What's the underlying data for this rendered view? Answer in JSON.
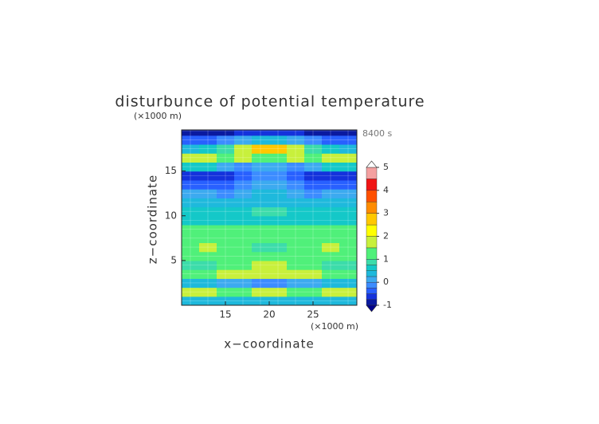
{
  "chart_data": {
    "type": "contour",
    "title": "disturbunce of potential temperature",
    "time_label": "8400 s",
    "xlabel": "x−coordinate",
    "ylabel": "z−coordinate",
    "x_unit": "(×1000 m)",
    "y_unit": "(×1000 m)",
    "xlim": [
      10,
      30
    ],
    "ylim": [
      0,
      19.6
    ],
    "xticks": [
      15,
      20,
      25
    ],
    "yticks": [
      5,
      10,
      15
    ],
    "grid": true,
    "x": [
      11,
      13,
      15,
      17,
      19,
      21,
      23,
      25,
      27,
      29
    ],
    "z": [
      0.5,
      1.5,
      2.5,
      3.5,
      4.5,
      5.5,
      6.5,
      7.5,
      8.5,
      9.5,
      10.5,
      11.5,
      12.5,
      13.5,
      14.5,
      15.5,
      16.5,
      17.5,
      18.5,
      19.5
    ],
    "values": [
      [
        0.25,
        0.25,
        0.25,
        0.25,
        0.25,
        0.25,
        0.25,
        0.25,
        0.25,
        0.25
      ],
      [
        1.5,
        1.5,
        1,
        1,
        1.5,
        1.5,
        1,
        1,
        1.5,
        1.5
      ],
      [
        0.25,
        0.25,
        0,
        0,
        -0.25,
        -0.25,
        0,
        0,
        0.25,
        0.25
      ],
      [
        1,
        1,
        1.5,
        1.5,
        1.5,
        1.5,
        1.5,
        1.5,
        1,
        1
      ],
      [
        0.75,
        0.75,
        1,
        1,
        1.5,
        1.5,
        1,
        1,
        0.75,
        0.75
      ],
      [
        1,
        1,
        1,
        1,
        1,
        1,
        1,
        1,
        1,
        1
      ],
      [
        1,
        1.5,
        1,
        1,
        0.75,
        0.75,
        1,
        1,
        1.5,
        1
      ],
      [
        1,
        1,
        1,
        1,
        1,
        1,
        1,
        1,
        1,
        1
      ],
      [
        1,
        1,
        1,
        1,
        1,
        1,
        1,
        1,
        1,
        1
      ],
      [
        0.5,
        0.5,
        0.5,
        0.5,
        0.5,
        0.5,
        0.5,
        0.5,
        0.5,
        0.5
      ],
      [
        0.5,
        0.5,
        0.5,
        0.5,
        0.75,
        0.75,
        0.5,
        0.5,
        0.5,
        0.5
      ],
      [
        0.25,
        0.25,
        0.25,
        0.25,
        0.25,
        0.25,
        0.25,
        0.25,
        0.25,
        0.25
      ],
      [
        0,
        0,
        -0.25,
        0,
        0.25,
        0.25,
        0,
        -0.25,
        0,
        0
      ],
      [
        -0.5,
        -0.5,
        -0.5,
        -0.25,
        0,
        0,
        -0.25,
        -0.5,
        -0.5,
        -0.5
      ],
      [
        -0.75,
        -0.75,
        -0.75,
        -0.5,
        -0.25,
        -0.25,
        -0.5,
        -0.75,
        -0.75,
        -0.75
      ],
      [
        0.5,
        0.5,
        0,
        -0.25,
        0,
        0,
        -0.25,
        0,
        0.5,
        0.5
      ],
      [
        1.5,
        1.5,
        1,
        1.5,
        1,
        1,
        1.5,
        1,
        1.5,
        1.5
      ],
      [
        0.25,
        0.5,
        0.75,
        1.5,
        2.5,
        2.5,
        1.5,
        0.75,
        0.5,
        0.25
      ],
      [
        -0.5,
        -0.5,
        -0.25,
        0,
        0.25,
        0.25,
        0,
        -0.25,
        -0.5,
        -0.5
      ],
      [
        -1,
        -1,
        -1,
        -0.75,
        -0.75,
        -0.75,
        -0.75,
        -1,
        -1,
        -1
      ]
    ],
    "levels": [
      -1,
      -0.75,
      -0.5,
      -0.25,
      0,
      0.25,
      0.5,
      0.75,
      1,
      1.5,
      2,
      2.5,
      3,
      3.5,
      4,
      4.5,
      5
    ],
    "colors": [
      "#0a1aa0",
      "#1432dc",
      "#2860ff",
      "#3c8cff",
      "#3caaf0",
      "#1eb9dc",
      "#14c8c8",
      "#3cdcaa",
      "#50f07a",
      "#c8f03c",
      "#ffff00",
      "#ffc800",
      "#ff8c00",
      "#ff5000",
      "#f01414",
      "#f4a0a0"
    ],
    "under_color": "#00008c",
    "over_color": "#ffffff",
    "colorbar_ticks": [
      -1,
      0,
      1,
      2,
      3,
      4,
      5
    ]
  }
}
